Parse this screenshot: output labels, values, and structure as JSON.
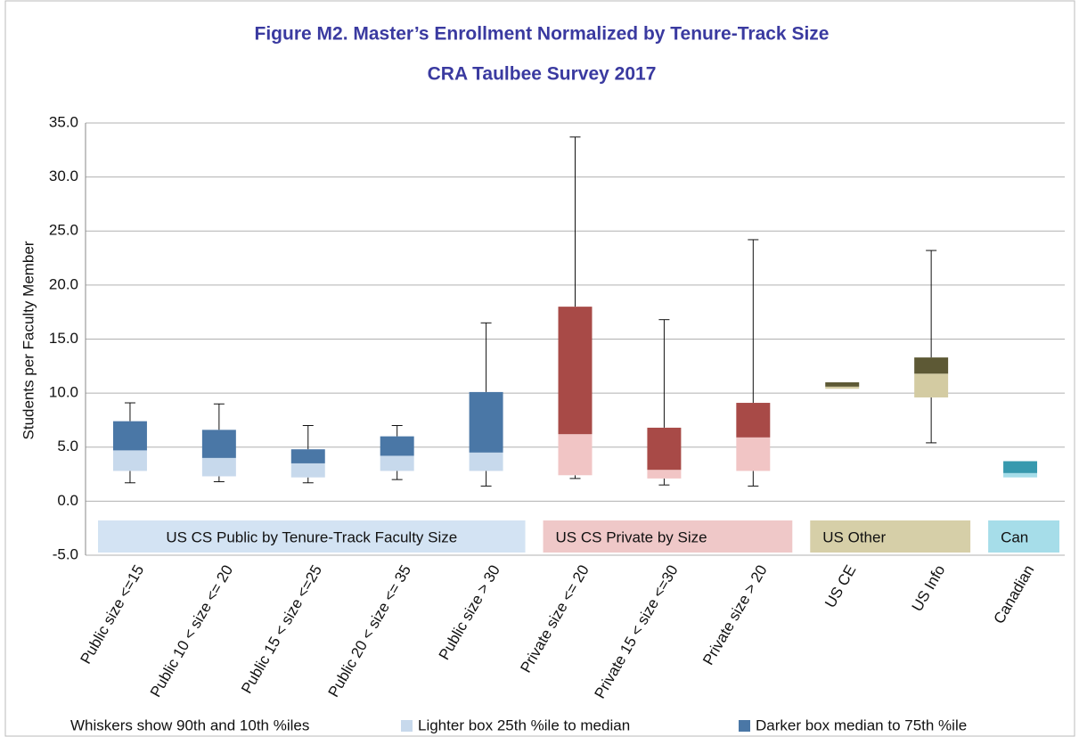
{
  "chart_data": {
    "type": "box",
    "title": "Figure M2. Master’s Enrollment Normalized by Tenure-Track Size",
    "subtitle": "CRA Taulbee Survey 2017",
    "y_label": "Students per Faculty Member",
    "ylim": [
      -5,
      35
    ],
    "yticks": [
      {
        "value": -5,
        "label": "-5.0"
      },
      {
        "value": 0,
        "label": "0.0"
      },
      {
        "value": 5,
        "label": "5.0"
      },
      {
        "value": 10,
        "label": "10.0"
      },
      {
        "value": 15,
        "label": "15.0"
      },
      {
        "value": 20,
        "label": "20.0"
      },
      {
        "value": 25,
        "label": "25.0"
      },
      {
        "value": 30,
        "label": "30.0"
      },
      {
        "value": 35,
        "label": "35.0"
      }
    ],
    "grid": true,
    "categories": [
      "Public size <=15",
      "Public 10 < size <= 20",
      "Public 15 < size <=25",
      "Public 20 < size <= 35",
      "Public size > 30",
      "Private size <= 20",
      "Private 15 < size <=30",
      "Private size > 20",
      "US CE",
      "US Info",
      "Canadian"
    ],
    "p10": [
      1.7,
      1.8,
      1.7,
      2.0,
      1.4,
      2.1,
      1.5,
      1.4,
      null,
      5.4,
      null
    ],
    "p25": [
      2.8,
      2.3,
      2.2,
      2.8,
      2.8,
      2.4,
      2.1,
      2.8,
      10.4,
      9.6,
      2.2
    ],
    "median": [
      4.7,
      4.0,
      3.5,
      4.2,
      4.5,
      6.2,
      2.9,
      5.9,
      10.6,
      11.8,
      2.6
    ],
    "p75": [
      7.4,
      6.6,
      4.8,
      6.0,
      10.1,
      18.0,
      6.8,
      9.1,
      11.0,
      13.3,
      3.7
    ],
    "p90": [
      9.1,
      9.0,
      7.0,
      7.0,
      16.5,
      33.7,
      16.8,
      24.2,
      null,
      23.2,
      null
    ],
    "groups": [
      {
        "label": "US CS Public by Tenure-Track Faculty Size",
        "size": 5,
        "light": "#c7d9ec",
        "dark": "#4a77a6",
        "band": "#d3e3f3"
      },
      {
        "label": "US CS Private by Size",
        "size": 3,
        "light": "#f1c5c5",
        "dark": "#a84a47",
        "band": "#efc8c8"
      },
      {
        "label": "US Other",
        "size": 2,
        "light": "#d3cba2",
        "dark": "#5d5935",
        "band": "#d6cfa8"
      },
      {
        "label": "Can",
        "size": 1,
        "light": "#a6dde9",
        "dark": "#3799ae",
        "band": "#a6dde9"
      }
    ],
    "legend": [
      "Whiskers show 90th and 10th %iles",
      "Lighter box  25th %ile to median",
      "Darker box  median to 75th %ile"
    ]
  }
}
